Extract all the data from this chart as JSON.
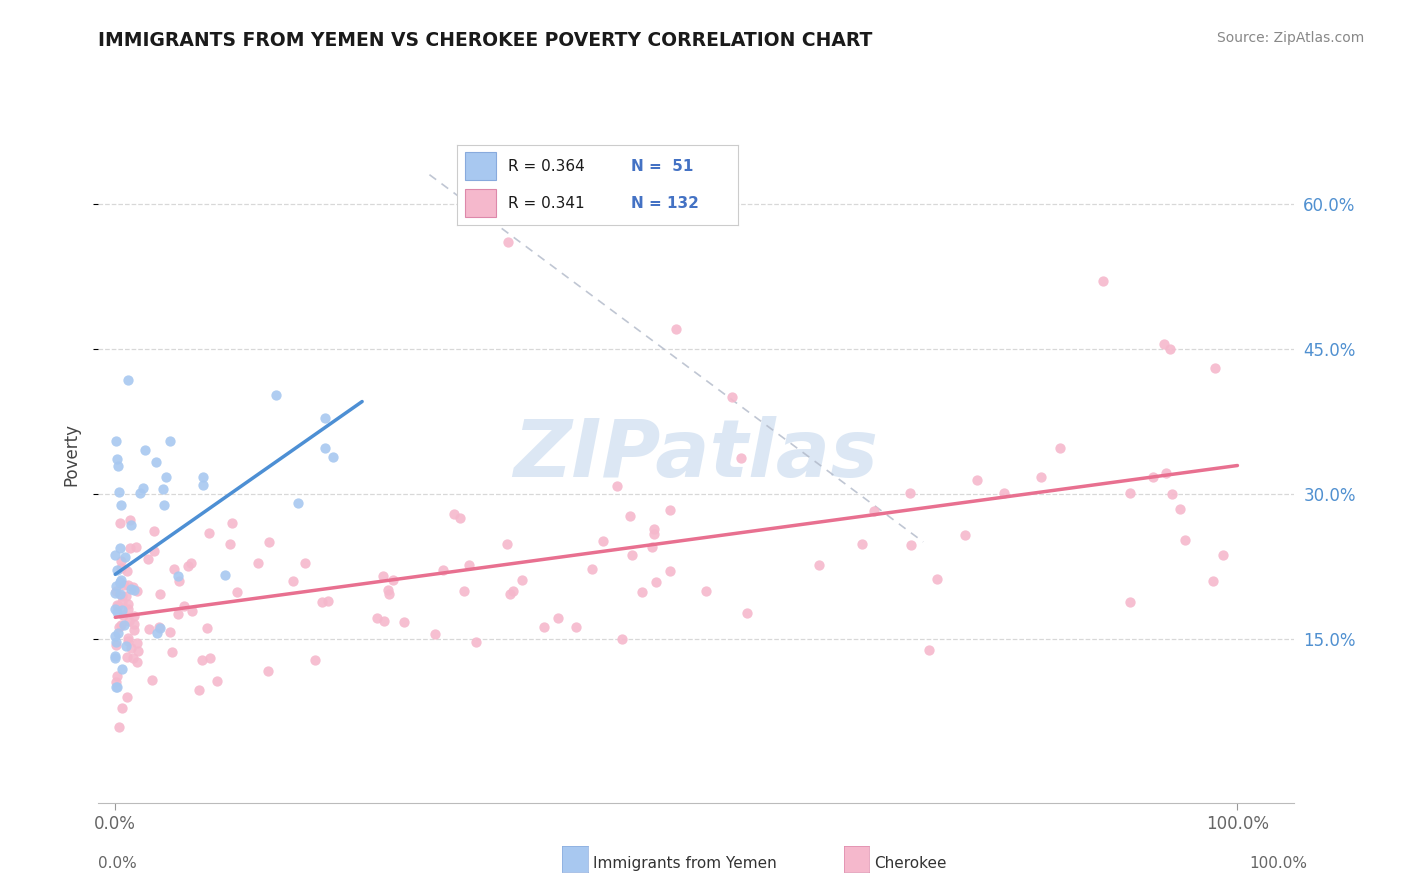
{
  "title": "IMMIGRANTS FROM YEMEN VS CHEROKEE POVERTY CORRELATION CHART",
  "source": "Source: ZipAtlas.com",
  "ylabel": "Poverty",
  "ytick_vals": [
    0.15,
    0.3,
    0.45,
    0.6
  ],
  "ytick_labels": [
    "15.0%",
    "30.0%",
    "45.0%",
    "60.0%"
  ],
  "xtick_labels": [
    "0.0%",
    "100.0%"
  ],
  "legend_r1": "R = 0.364",
  "legend_n1": "51",
  "legend_r2": "R = 0.341",
  "legend_n2": "132",
  "series1_label": "Immigrants from Yemen",
  "series2_label": "Cherokee",
  "series1_color": "#a8c8f0",
  "series2_color": "#f5b8cc",
  "series1_line_color": "#4d8fd4",
  "series2_line_color": "#e87090",
  "watermark": "ZIPatlas",
  "background_color": "#ffffff",
  "grid_color": "#d8d8d8",
  "title_color": "#1a1a1a",
  "source_color": "#888888",
  "ylabel_color": "#444444",
  "tick_color_y": "#5090d0",
  "tick_color_x": "#666666",
  "legend_text_color": "#1a1a1a",
  "legend_n_color": "#4472c4",
  "dashed_line_color": "#b0b8c8"
}
